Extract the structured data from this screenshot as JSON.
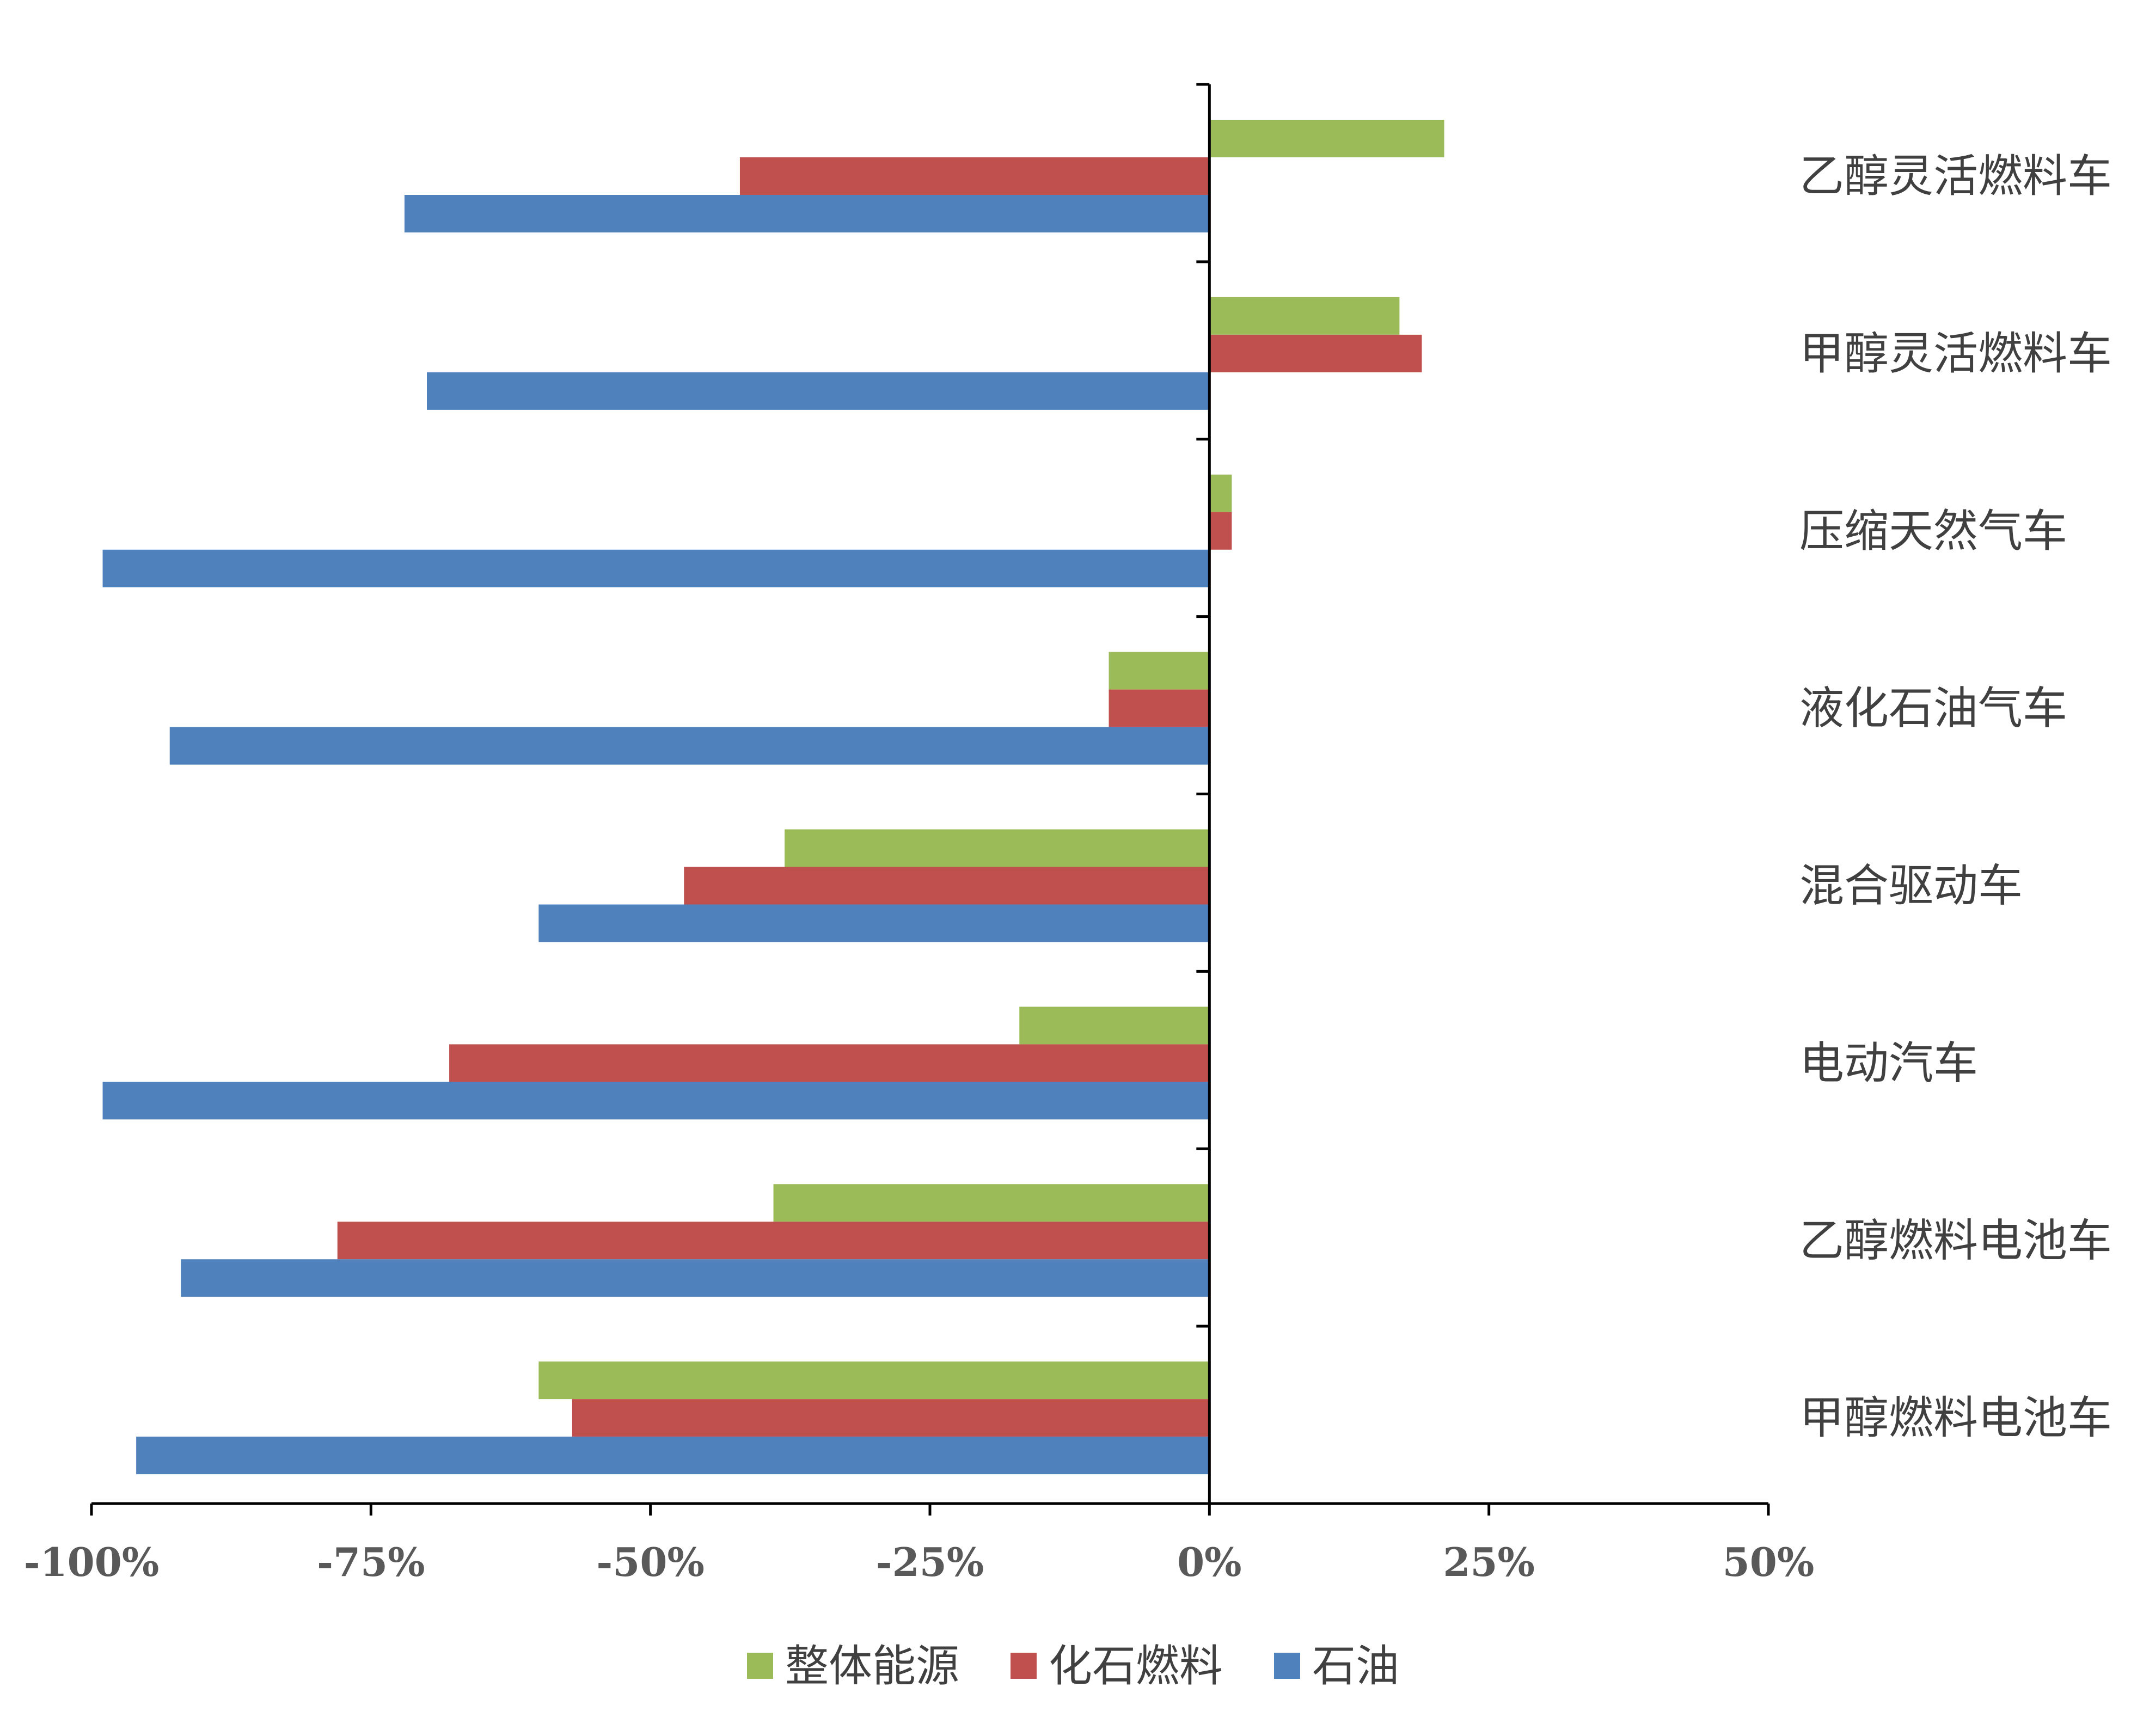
{
  "chart_data": {
    "type": "bar",
    "orientation": "horizontal",
    "title": "",
    "xlabel": "",
    "ylabel": "",
    "categories": [
      "乙醇灵活燃料车",
      "甲醇灵活燃料车",
      "压缩天然气车",
      "液化石油气车",
      "混合驱动车",
      "电动汽车",
      "乙醇燃料电池车",
      "甲醇燃料电池车"
    ],
    "series": [
      {
        "name": "整体能源",
        "color": "#9BBB59",
        "values": [
          21,
          17,
          2,
          -9,
          -38,
          -17,
          -39,
          -60
        ]
      },
      {
        "name": "化石燃料",
        "color": "#C0504D",
        "values": [
          -42,
          19,
          2,
          -9,
          -47,
          -68,
          -78,
          -57
        ]
      },
      {
        "name": "石油",
        "color": "#4F81BD",
        "values": [
          -72,
          -70,
          -99,
          -93,
          -60,
          -99,
          -92,
          -96
        ]
      }
    ],
    "xlim": [
      -100,
      50
    ],
    "xticks": [
      "-100%",
      "-75%",
      "-50%",
      "-25%",
      "0%",
      "25%",
      "50%"
    ],
    "grid": false,
    "legend_position": "bottom"
  }
}
